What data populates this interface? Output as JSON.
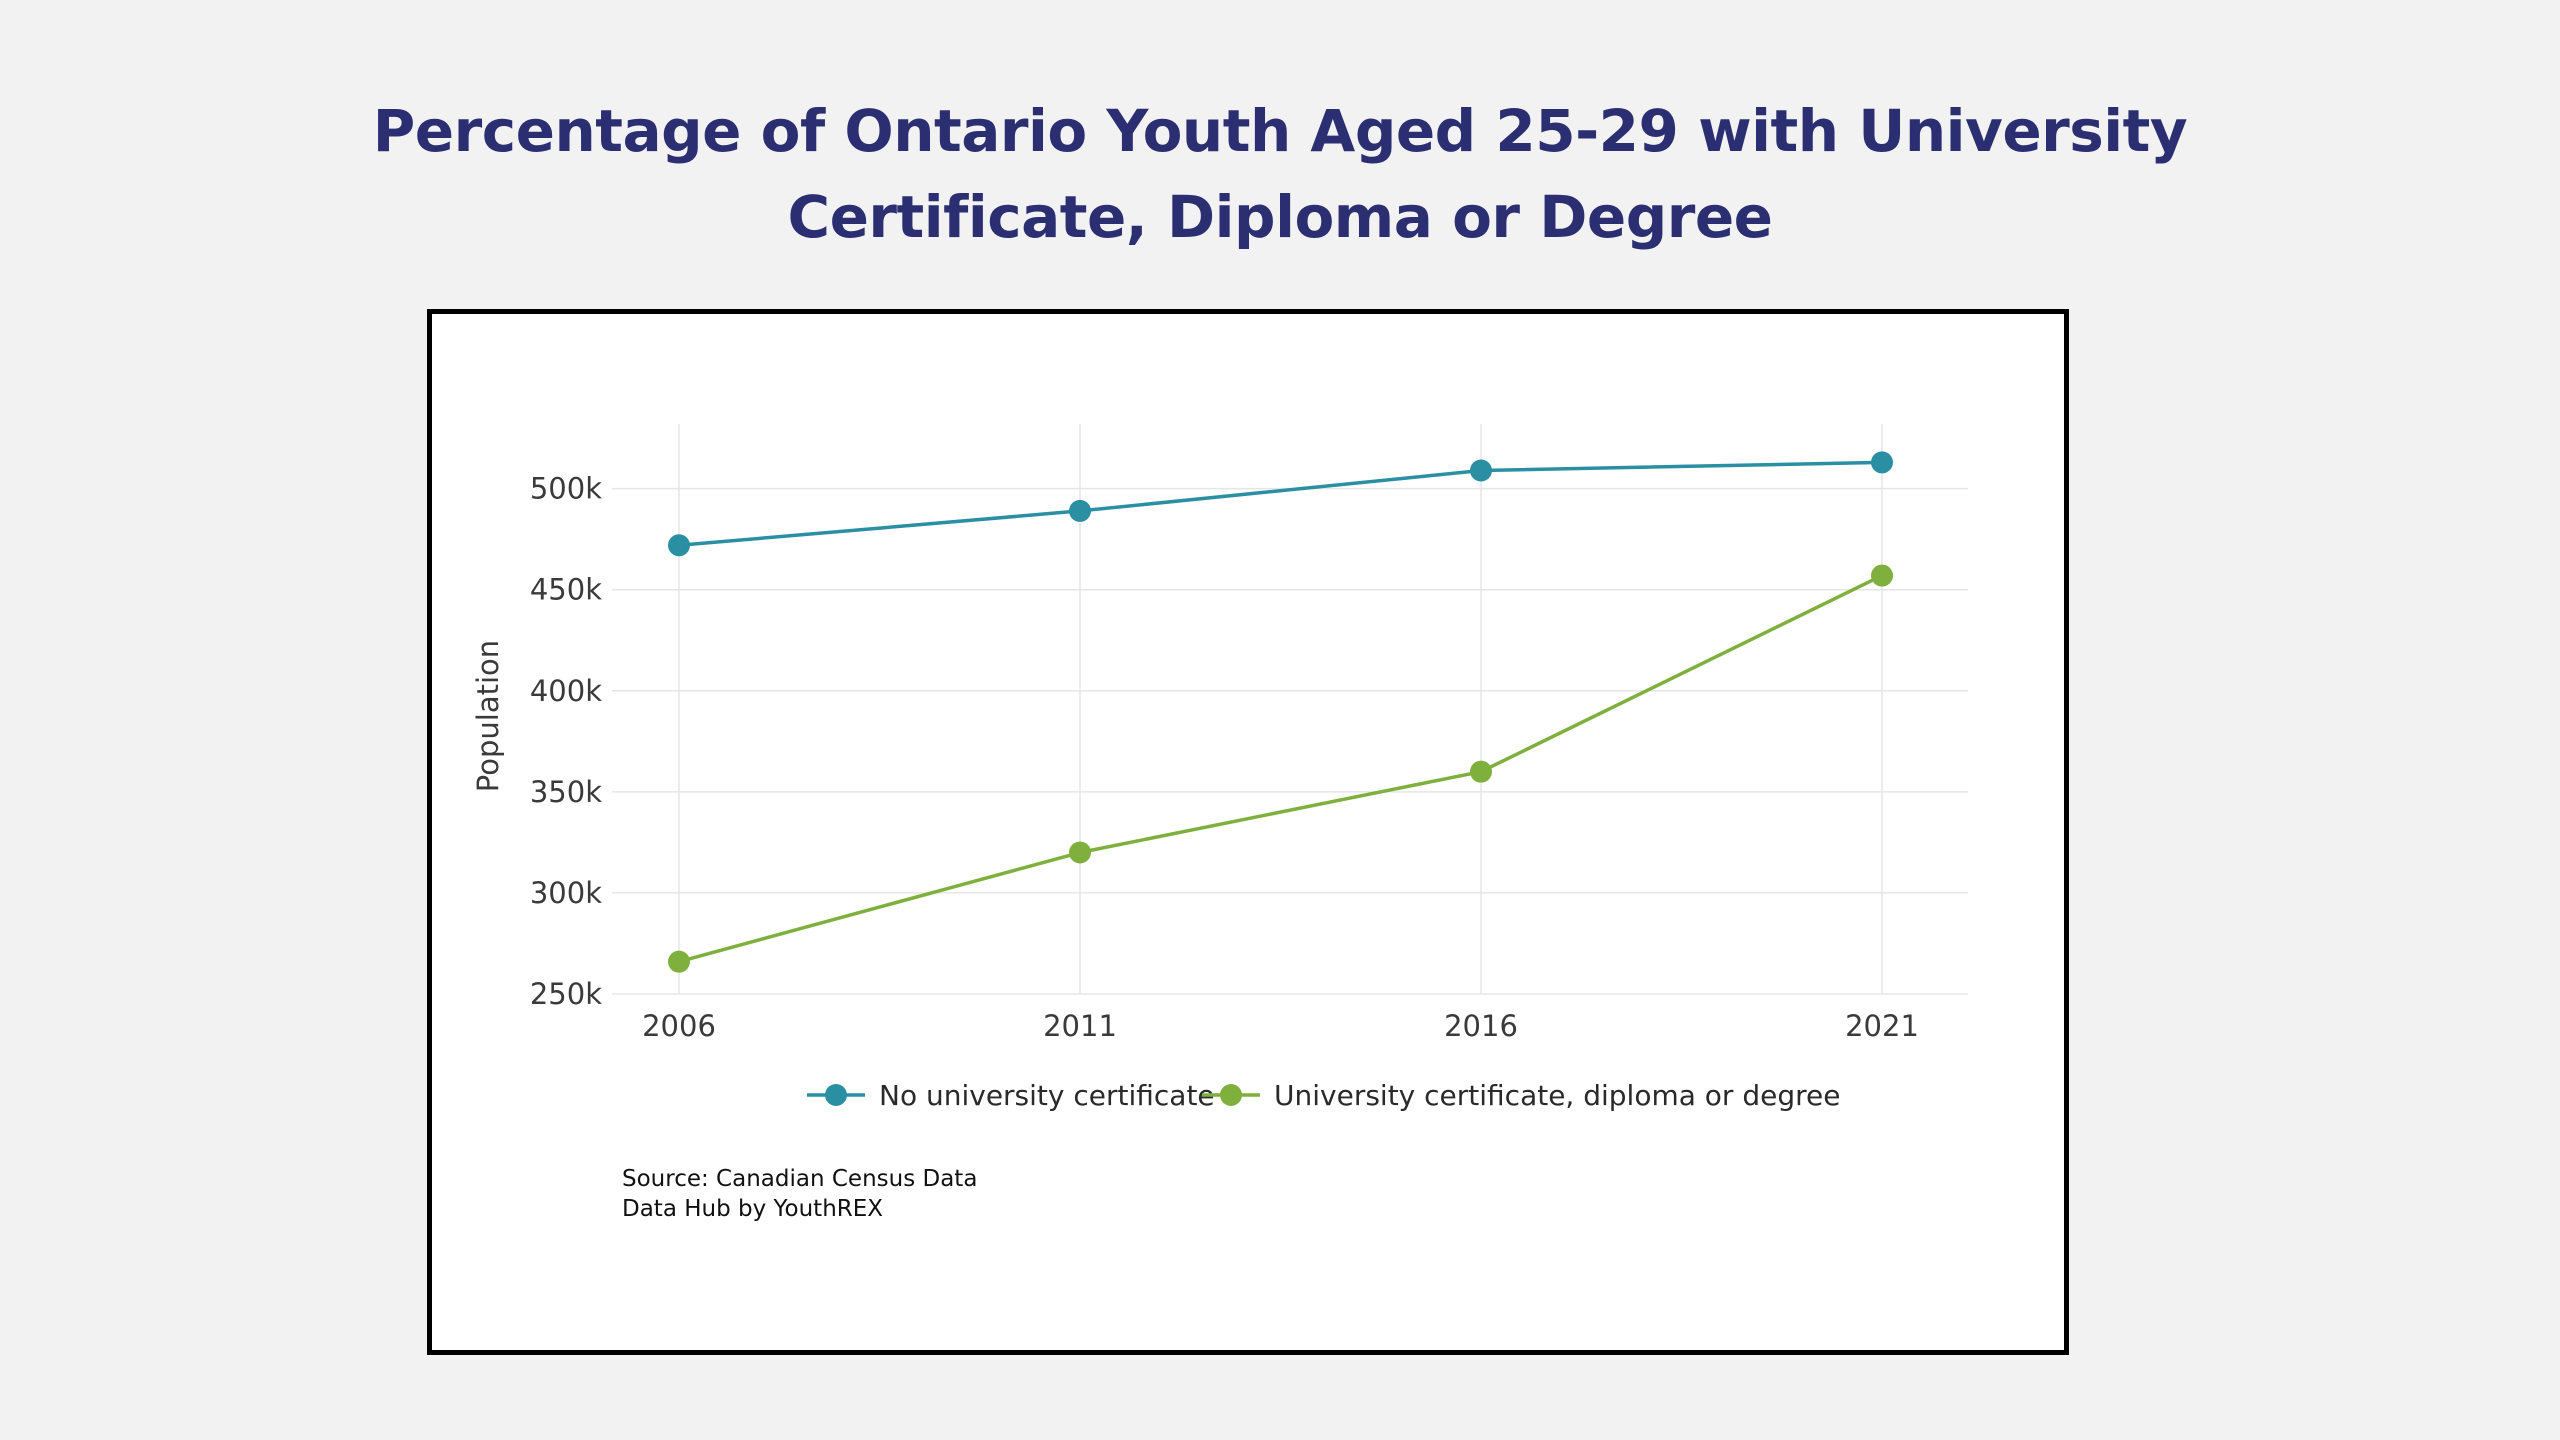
{
  "title_lines": [
    "Percentage of Ontario Youth Aged 25-29 with University",
    "Certificate, Diploma or Degree"
  ],
  "source_lines": [
    "Source: Canadian Census Data",
    "Data Hub by YouthREX"
  ],
  "colors": {
    "background": "#f2f2f2",
    "title": "#2b2f72",
    "frame": "#000000",
    "grid": "#e6e6e6"
  },
  "chart_data": {
    "type": "line",
    "title": "Percentage of Ontario Youth Aged 25-29 with University Certificate, Diploma or Degree",
    "xlabel": "",
    "ylabel": "Population",
    "x": [
      "2006",
      "2011",
      "2016",
      "2021"
    ],
    "yticks": [
      250000,
      300000,
      350000,
      400000,
      450000,
      500000
    ],
    "ytick_labels": [
      "250k",
      "300k",
      "350k",
      "400k",
      "450k",
      "500k"
    ],
    "ylim": [
      250000,
      532000
    ],
    "grid": true,
    "legend_position": "bottom",
    "series": [
      {
        "name": "No university certificate",
        "color": "#2a8fa3",
        "values": [
          472000,
          489000,
          509000,
          513000
        ]
      },
      {
        "name": "University certificate, diploma or degree",
        "color": "#7fb03e",
        "values": [
          266000,
          320000,
          360000,
          457000
        ]
      }
    ]
  }
}
